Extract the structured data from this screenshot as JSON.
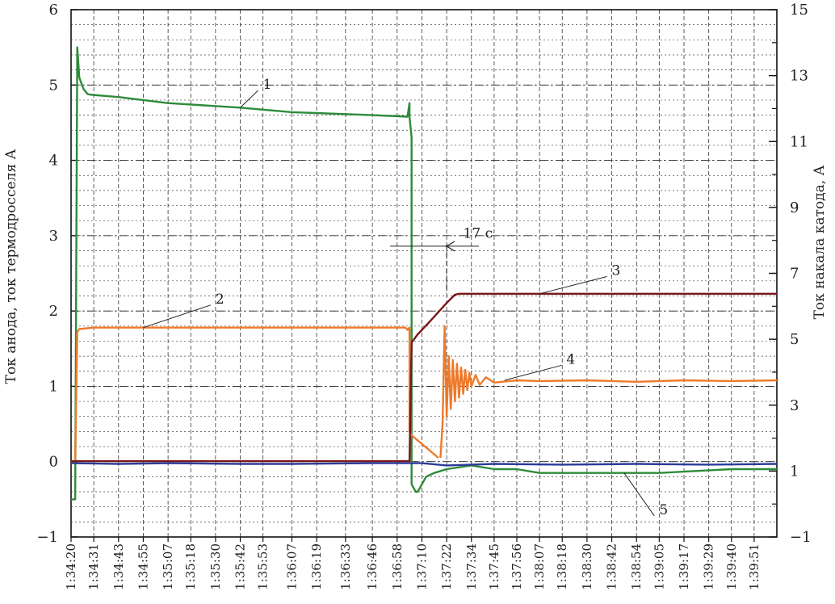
{
  "chart_data": {
    "type": "line",
    "ylabel": "Ток анода, ток термодросселя А",
    "y2label": "Ток накала катода, А",
    "ylim": [
      -1,
      6
    ],
    "y2lim": [
      -1,
      15
    ],
    "yticks": [
      -1,
      0,
      1,
      2,
      3,
      4,
      5,
      6
    ],
    "y2ticks": [
      -1,
      1,
      3,
      5,
      7,
      9,
      11,
      13,
      15
    ],
    "xlim": [
      "1:34:20",
      "1:40:02"
    ],
    "xticks": [
      "1:34:20",
      "1:34:31",
      "1:34:43",
      "1:34:55",
      "1:35:07",
      "1:35:18",
      "1:35:30",
      "1:35:42",
      "1:35:53",
      "1:36:07",
      "1:36:19",
      "1:36:33",
      "1:36:46",
      "1:36:58",
      "1:37:10",
      "1:37:22",
      "1:37:34",
      "1:37:45",
      "1:37:56",
      "1:38:07",
      "1:38:18",
      "1:38:30",
      "1:38:42",
      "1:38:54",
      "1:39:05",
      "1:39:17",
      "1:39:29",
      "1:39:40",
      "1:39:51"
    ],
    "grid": true,
    "series": [
      {
        "name": "1",
        "color": "#2e8b3a",
        "axis": "left",
        "x": [
          "1:34:20",
          "1:34:22",
          "1:34:23",
          "1:34:24",
          "1:34:26",
          "1:34:28",
          "1:34:30",
          "1:34:43",
          "1:35:07",
          "1:35:42",
          "1:36:07",
          "1:36:46",
          "1:37:03",
          "1:37:04",
          "1:37:04",
          "1:37:05",
          "1:37:05",
          "1:37:07",
          "1:37:08",
          "1:37:09",
          "1:37:12",
          "1:37:16",
          "1:37:22",
          "1:37:34",
          "1:37:45",
          "1:37:56",
          "1:38:07",
          "1:39:05",
          "1:39:40",
          "1:40:02"
        ],
        "y": [
          -0.5,
          -0.5,
          5.5,
          5.1,
          4.95,
          4.88,
          4.87,
          4.84,
          4.76,
          4.7,
          4.64,
          4.6,
          4.58,
          4.76,
          4.58,
          4.3,
          -0.3,
          -0.4,
          -0.4,
          -0.35,
          -0.2,
          -0.15,
          -0.1,
          -0.05,
          -0.1,
          -0.1,
          -0.15,
          -0.15,
          -0.1,
          -0.1
        ]
      },
      {
        "name": "2",
        "color": "#ee7a2a",
        "axis": "left",
        "x": [
          "1:34:20",
          "1:34:22",
          "1:34:23",
          "1:34:24",
          "1:34:31",
          "1:35:07",
          "1:36:07",
          "1:37:02",
          "1:37:03",
          "1:37:04",
          "1:37:04",
          "1:37:05",
          "1:37:15",
          "1:37:18"
        ],
        "y": [
          0.0,
          0.0,
          1.72,
          1.76,
          1.78,
          1.78,
          1.78,
          1.78,
          1.75,
          1.78,
          0.4,
          0.35,
          0.12,
          0.05
        ]
      },
      {
        "name": "3",
        "color": "#7a1618",
        "axis": "right",
        "x": [
          "1:34:20",
          "1:35:07",
          "1:36:07",
          "1:37:04",
          "1:37:05",
          "1:37:08",
          "1:37:14",
          "1:37:22",
          "1:37:26",
          "1:37:28",
          "1:37:34",
          "1:37:45",
          "1:38:07",
          "1:39:05",
          "1:40:02"
        ],
        "y": [
          1.3,
          1.3,
          1.3,
          1.3,
          4.9,
          5.15,
          5.55,
          6.1,
          6.35,
          6.38,
          6.38,
          6.38,
          6.38,
          6.38,
          6.38
        ]
      },
      {
        "name": "4",
        "color": "#ee7a2a",
        "axis": "left",
        "x": [
          "1:37:19",
          "1:37:20",
          "1:37:21",
          "1:37:22",
          "1:37:23",
          "1:37:24",
          "1:37:25",
          "1:37:26",
          "1:37:27",
          "1:37:28",
          "1:37:29",
          "1:37:30",
          "1:37:31",
          "1:37:32",
          "1:37:33",
          "1:37:34",
          "1:37:36",
          "1:37:38",
          "1:37:41",
          "1:37:45",
          "1:37:56",
          "1:38:07",
          "1:38:30",
          "1:38:54",
          "1:39:17",
          "1:39:40",
          "1:40:02"
        ],
        "y": [
          0.05,
          0.5,
          1.8,
          0.6,
          1.4,
          0.7,
          1.35,
          0.8,
          1.3,
          0.85,
          1.25,
          0.9,
          1.22,
          0.95,
          1.18,
          1.0,
          1.15,
          1.02,
          1.12,
          1.05,
          1.08,
          1.07,
          1.08,
          1.06,
          1.08,
          1.07,
          1.08
        ]
      },
      {
        "name": "5",
        "color": "#2c3b9a",
        "axis": "left",
        "x": [
          "1:34:20",
          "1:34:43",
          "1:35:07",
          "1:35:42",
          "1:36:07",
          "1:36:46",
          "1:37:10",
          "1:37:22",
          "1:37:45",
          "1:38:18",
          "1:38:54",
          "1:39:29",
          "1:40:02"
        ],
        "y": [
          -0.02,
          -0.03,
          -0.02,
          -0.03,
          -0.03,
          -0.02,
          -0.02,
          -0.05,
          -0.03,
          -0.04,
          -0.03,
          -0.04,
          -0.03
        ]
      }
    ],
    "annotations": [
      {
        "text": "1",
        "x": "1:35:53",
        "y": 4.95,
        "target_x": "1:35:42",
        "target_y": 4.7
      },
      {
        "text": "2",
        "x": "1:35:30",
        "y": 2.1,
        "target_x": "1:34:55",
        "target_y": 1.78
      },
      {
        "text": "3",
        "x": "1:38:42",
        "y": 6.95,
        "target_x": "1:38:07",
        "target_y": 6.38,
        "axis": "right"
      },
      {
        "text": "4",
        "x": "1:38:20",
        "y": 1.3,
        "target_x": "1:37:50",
        "target_y": 1.08
      },
      {
        "text": "5",
        "x": "1:39:05",
        "y": -0.7,
        "target_x": "1:38:48",
        "target_y": -0.15
      },
      {
        "text": "17 с",
        "x": "1:37:30",
        "y": 2.97
      }
    ],
    "span_marker": {
      "x_start": "1:37:04",
      "x_end": "1:37:22"
    }
  }
}
